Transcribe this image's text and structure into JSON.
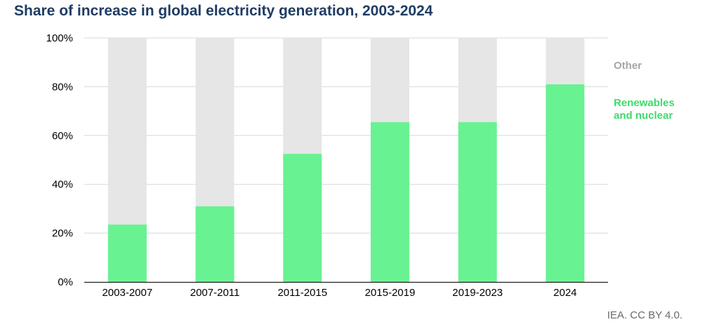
{
  "title": "Share of increase in global electricity generation, 2003-2024",
  "credit": "IEA. CC BY 4.0.",
  "legend": {
    "other": "Other",
    "renewables_line1": "Renewables",
    "renewables_line2": "and nuclear"
  },
  "colors": {
    "renewables": "#68f291",
    "other": "#e6e6e6",
    "grid": "#d9d9d9",
    "title": "#1f3d64"
  },
  "chart_data": {
    "type": "bar",
    "stacked": true,
    "title": "Share of increase in global electricity generation, 2003-2024",
    "categories": [
      "2003-2007",
      "2007-2011",
      "2011-2015",
      "2015-2019",
      "2019-2023",
      "2024"
    ],
    "series": [
      {
        "name": "Renewables and nuclear",
        "values": [
          23.5,
          31,
          52.5,
          65.5,
          65.5,
          81
        ]
      },
      {
        "name": "Other",
        "values": [
          76.5,
          69,
          47.5,
          34.5,
          34.5,
          19
        ]
      }
    ],
    "ylim": [
      0,
      100
    ],
    "yticks": [
      "0%",
      "20%",
      "40%",
      "60%",
      "80%",
      "100%"
    ],
    "grid": true,
    "legend_position": "right",
    "xlabel": "",
    "ylabel": ""
  }
}
